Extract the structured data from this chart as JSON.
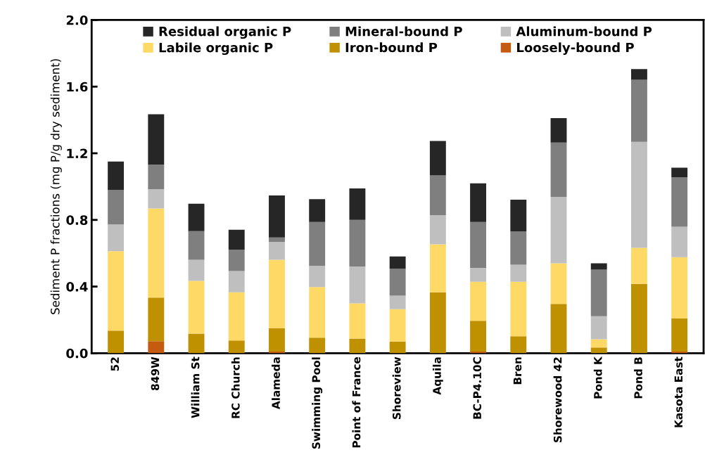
{
  "chart_data": {
    "type": "bar",
    "stacked": true,
    "ylabel": "Sediment P fractions (mg P/g dry sediment)",
    "categories": [
      "52",
      "849W",
      "William St",
      "RC Church",
      "Alameda",
      "Swimming Pool",
      "Point of France",
      "Shoreview",
      "Aquila",
      "BC-P4.10C",
      "Bren",
      "Shorewood 42",
      "Pond K",
      "Pond B",
      "Kasota East"
    ],
    "series": [
      {
        "name": "Loosely-bound P",
        "color": "#c55a11",
        "values": [
          0,
          0.072,
          0,
          0,
          0.01,
          0,
          0,
          0,
          0,
          0.01,
          0,
          0,
          0,
          0,
          0.01
        ]
      },
      {
        "name": "Iron-bound P",
        "color": "#bf9000",
        "values": [
          0.135,
          0.262,
          0.117,
          0.076,
          0.139,
          0.093,
          0.088,
          0.07,
          0.365,
          0.184,
          0.102,
          0.296,
          0.034,
          0.416,
          0.198
        ]
      },
      {
        "name": "Labile organic P",
        "color": "#ffd966",
        "values": [
          0.477,
          0.535,
          0.317,
          0.289,
          0.412,
          0.304,
          0.211,
          0.194,
          0.288,
          0.235,
          0.327,
          0.243,
          0.05,
          0.216,
          0.368
        ]
      },
      {
        "name": "Aluminum-bound P",
        "color": "#bfbfbf",
        "values": [
          0.161,
          0.116,
          0.127,
          0.128,
          0.107,
          0.128,
          0.222,
          0.081,
          0.176,
          0.083,
          0.102,
          0.399,
          0.138,
          0.637,
          0.183
        ]
      },
      {
        "name": "Mineral-bound P",
        "color": "#7f7f7f",
        "values": [
          0.207,
          0.146,
          0.172,
          0.129,
          0.027,
          0.262,
          0.279,
          0.162,
          0.238,
          0.275,
          0.2,
          0.326,
          0.28,
          0.372,
          0.298
        ]
      },
      {
        "name": "Residual organic P",
        "color": "#262626",
        "values": [
          0.17,
          0.303,
          0.164,
          0.119,
          0.252,
          0.138,
          0.189,
          0.074,
          0.207,
          0.233,
          0.19,
          0.147,
          0.037,
          0.064,
          0.056
        ]
      }
    ],
    "ylim": [
      0,
      2.0
    ],
    "yticks": [
      {
        "value": 0,
        "label": "0.0"
      },
      {
        "value": 0.4,
        "label": "0.4"
      },
      {
        "value": 0.8,
        "label": "0.8"
      },
      {
        "value": 1.2,
        "label": "1.2"
      },
      {
        "value": 1.6,
        "label": "1.6"
      },
      {
        "value": 2.0,
        "label": "2.0"
      }
    ],
    "legend": "top",
    "grid": false
  }
}
